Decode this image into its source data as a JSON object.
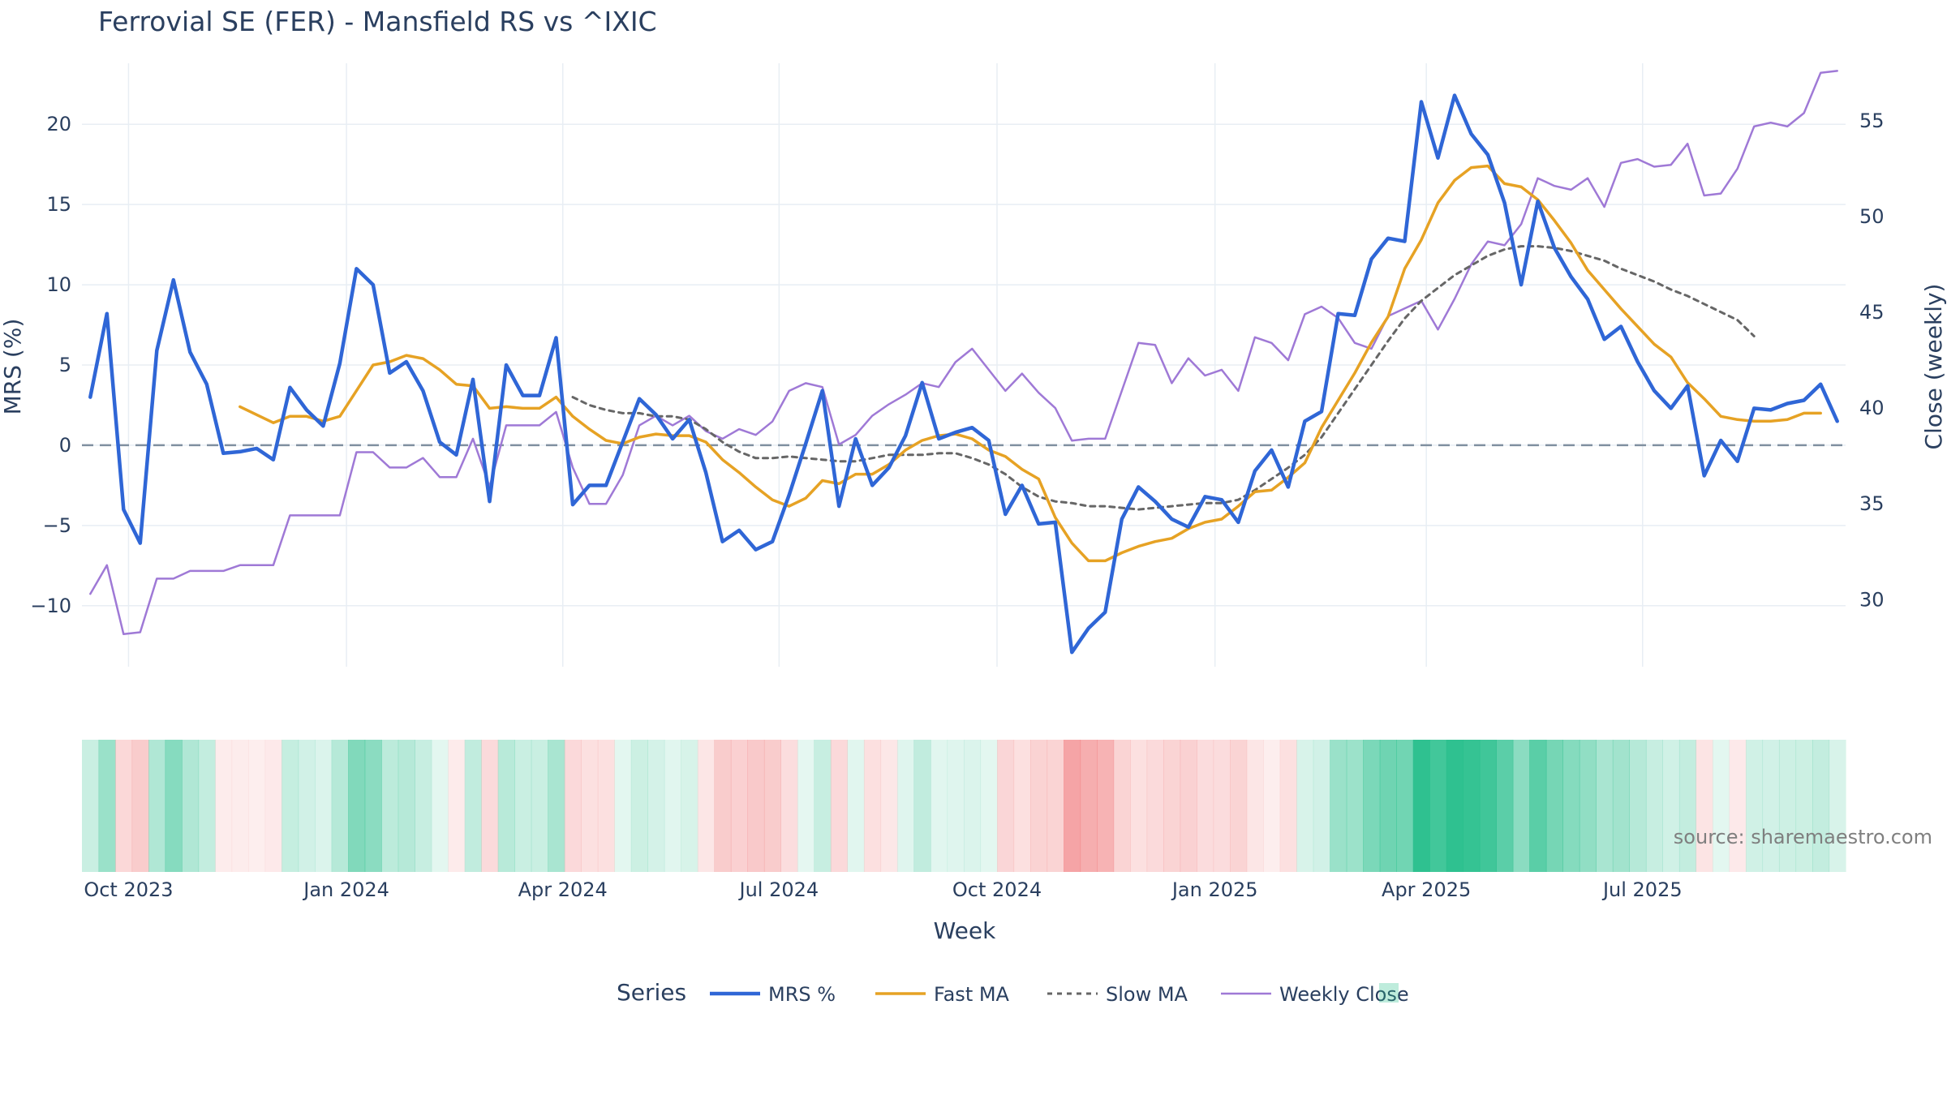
{
  "chart_data": {
    "type": "line",
    "title": "Ferrovial SE (FER) - Mansfield RS vs ^IXIC",
    "xlabel": "Week",
    "ylabel_left": "MRS (%)",
    "ylabel_right": "Close (weekly)",
    "y_left_range": [
      -13.8,
      23.8
    ],
    "y_right_range": [
      26.5,
      58.0
    ],
    "y_left_ticks": [
      -10,
      -5,
      0,
      5,
      10,
      15,
      20
    ],
    "y_right_ticks": [
      30,
      35,
      40,
      45,
      50,
      55
    ],
    "x_tick_labels": [
      "Oct 2023",
      "Jan 2024",
      "Apr 2024",
      "Jul 2024",
      "Oct 2024",
      "Jan 2025",
      "Apr 2025",
      "Jul 2025"
    ],
    "x_tick_weeks": [
      2.3,
      15.4,
      28.4,
      41.4,
      54.5,
      67.6,
      80.3,
      93.3
    ],
    "week_count": 106,
    "zero_line": 0,
    "legend_title": "Series",
    "series": [
      {
        "name": "MRS %",
        "color": "#2f66d6",
        "axis": "left",
        "values": [
          3,
          8.2,
          -4,
          -6.1,
          5.9,
          10.3,
          5.8,
          3.8,
          -0.5,
          -0.4,
          -0.2,
          -0.9,
          3.6,
          2.2,
          1.2,
          5.1,
          11,
          10,
          4.5,
          5.2,
          3.4,
          0.2,
          -0.6,
          4.1,
          -3.5,
          5,
          3.1,
          3.1,
          6.7,
          -3.7,
          -2.5,
          -2.5,
          0.2,
          2.9,
          1.9,
          0.4,
          1.6,
          -1.7,
          -6,
          -5.3,
          -6.5,
          -6,
          -3.1,
          0.1,
          3.4,
          -3.8,
          0.4,
          -2.5,
          -1.4,
          0.6,
          3.9,
          0.4,
          0.8,
          1.1,
          0.3,
          -4.3,
          -2.5,
          -4.9,
          -4.8,
          -12.9,
          -11.4,
          -10.4,
          -4.6,
          -2.6,
          -3.5,
          -4.6,
          -5.1,
          -3.2,
          -3.4,
          -4.8,
          -1.6,
          -0.3,
          -2.6,
          1.5,
          2.1,
          8.2,
          8.1,
          11.6,
          12.9,
          12.7,
          21.4,
          17.9,
          21.8,
          19.4,
          18.1,
          15.1,
          10,
          15.2,
          12.3,
          10.5,
          9.1,
          6.6,
          7.4,
          5.2,
          3.4,
          2.3,
          3.7,
          -1.9,
          0.3,
          -1,
          2.3,
          2.2,
          2.6,
          2.8,
          3.8,
          1.5
        ]
      },
      {
        "name": "Fast MA",
        "color": "#e6a224",
        "axis": "left",
        "start_week": 9,
        "values": [
          2.4,
          1.9,
          1.4,
          1.8,
          1.8,
          1.5,
          1.8,
          3.4,
          5,
          5.2,
          5.6,
          5.4,
          4.7,
          3.8,
          3.7,
          2.3,
          2.4,
          2.3,
          2.3,
          3,
          1.8,
          1,
          0.3,
          0.1,
          0.5,
          0.7,
          0.6,
          0.6,
          0.2,
          -0.9,
          -1.7,
          -2.6,
          -3.4,
          -3.8,
          -3.3,
          -2.2,
          -2.4,
          -1.8,
          -1.8,
          -1.2,
          -0.3,
          0.3,
          0.6,
          0.7,
          0.4,
          -0.3,
          -0.7,
          -1.5,
          -2.1,
          -4.5,
          -6.1,
          -7.2,
          -7.2,
          -6.7,
          -6.3,
          -6,
          -5.8,
          -5.2,
          -4.8,
          -4.6,
          -3.8,
          -2.9,
          -2.8,
          -2,
          -1.1,
          1.1,
          2.8,
          4.5,
          6.4,
          8,
          11,
          12.8,
          15.1,
          16.5,
          17.3,
          17.4,
          16.3,
          16.1,
          15.3,
          14,
          12.6,
          10.9,
          9.7,
          8.5,
          7.4,
          6.3,
          5.5,
          3.9,
          2.9,
          1.8,
          1.6,
          1.5,
          1.5,
          1.6,
          2,
          2
        ]
      },
      {
        "name": "Slow MA",
        "color": "#666666",
        "axis": "left",
        "dash": true,
        "start_week": 29,
        "values": [
          3,
          2.5,
          2.2,
          2,
          2,
          1.8,
          1.8,
          1.6,
          1,
          0.2,
          -0.4,
          -0.8,
          -0.8,
          -0.7,
          -0.8,
          -0.9,
          -1,
          -1,
          -0.8,
          -0.6,
          -0.6,
          -0.6,
          -0.5,
          -0.5,
          -0.8,
          -1.2,
          -1.8,
          -2.6,
          -3.2,
          -3.5,
          -3.6,
          -3.8,
          -3.8,
          -3.9,
          -4,
          -3.9,
          -3.8,
          -3.7,
          -3.6,
          -3.6,
          -3.4,
          -2.8,
          -2.1,
          -1.4,
          -0.6,
          0.5,
          2,
          3.5,
          5,
          6.5,
          7.9,
          9,
          9.8,
          10.6,
          11.2,
          11.8,
          12.2,
          12.4,
          12.4,
          12.3,
          12.1,
          11.8,
          11.5,
          11,
          10.6,
          10.2,
          9.7,
          9.3,
          8.8,
          8.3,
          7.8,
          6.8
        ]
      },
      {
        "name": "Weekly Close",
        "color": "#9f79d6",
        "axis": "right",
        "values": [
          30.3,
          31.8,
          28.2,
          28.3,
          31.1,
          31.1,
          31.5,
          31.5,
          31.5,
          31.8,
          31.8,
          31.8,
          34.4,
          34.4,
          34.4,
          34.4,
          37.7,
          37.7,
          36.9,
          36.9,
          37.4,
          36.4,
          36.4,
          38.4,
          35.9,
          39.1,
          39.1,
          39.1,
          39.8,
          36.9,
          35,
          35,
          36.5,
          39.1,
          39.6,
          39.1,
          39.6,
          38.8,
          38.4,
          38.9,
          38.6,
          39.3,
          40.9,
          41.3,
          41.1,
          38.1,
          38.6,
          39.6,
          40.2,
          40.7,
          41.3,
          41.1,
          42.4,
          43.1,
          42,
          40.9,
          41.8,
          40.8,
          40,
          38.3,
          38.4,
          38.4,
          40.9,
          43.4,
          43.3,
          41.3,
          42.6,
          41.7,
          42,
          40.9,
          43.7,
          43.4,
          42.5,
          44.9,
          45.3,
          44.7,
          43.4,
          43.1,
          44.8,
          45.2,
          45.6,
          44.1,
          45.7,
          47.5,
          48.7,
          48.5,
          49.6,
          52,
          51.6,
          51.4,
          52,
          50.5,
          52.8,
          53,
          52.6,
          52.7,
          53.8,
          51.1,
          51.2,
          52.5,
          54.7,
          54.9,
          54.7,
          55.4,
          57.5,
          57.6
        ]
      }
    ],
    "heatmap": {
      "description": "weekly MRS strength band",
      "positive_color": "#28bf8c",
      "negative_color": "#f0787a",
      "values_source": "MRS %"
    },
    "source": "source: sharemaestro.com"
  }
}
